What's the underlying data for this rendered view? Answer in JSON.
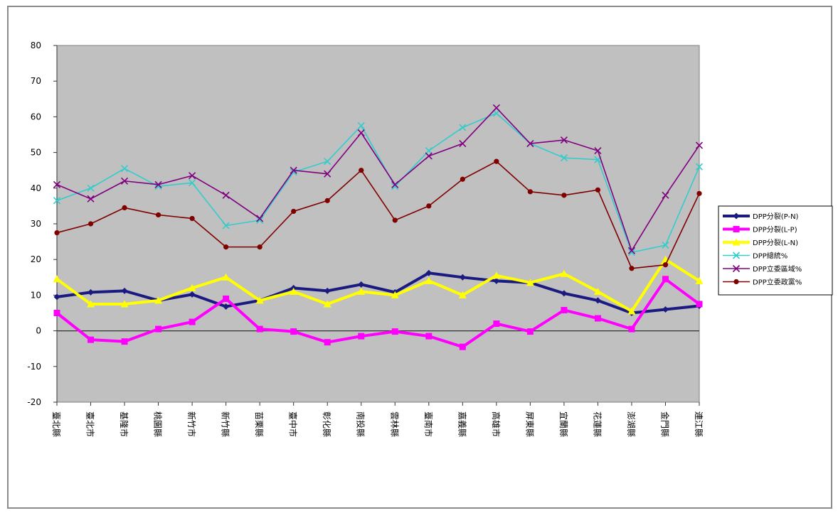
{
  "chart_data": {
    "type": "line",
    "title": "",
    "xlabel": "",
    "ylabel": "",
    "ylim": [
      -20,
      80
    ],
    "yticks": [
      80,
      70,
      60,
      50,
      40,
      30,
      20,
      10,
      0,
      -10,
      -20
    ],
    "grid": "horizontal-off, plot-area-gray",
    "legend_position": "right",
    "categories": [
      "臺北縣",
      "臺北市",
      "基隆市",
      "桃園縣",
      "新竹市",
      "新竹縣",
      "苗栗縣",
      "臺中市",
      "彰化縣",
      "南投縣",
      "雲林縣",
      "臺南市",
      "嘉義縣",
      "高雄市",
      "屏東縣",
      "宜蘭縣",
      "花蓮縣",
      "澎湖縣",
      "金門縣",
      "連江縣"
    ],
    "series": [
      {
        "name": "DPP分裂(P-N)",
        "color": "#1a1a80",
        "marker": "diamond",
        "values": [
          9.5,
          10.8,
          11.2,
          8.5,
          10.2,
          6.8,
          8.5,
          12,
          11.2,
          13,
          10.8,
          16.2,
          15,
          14,
          13.5,
          10.5,
          8.5,
          5,
          6,
          7
        ]
      },
      {
        "name": "DPP分裂(L-P)",
        "color": "#ff00ff",
        "marker": "square",
        "values": [
          5,
          -2.5,
          -3,
          0.5,
          2.5,
          9,
          0.5,
          -0.2,
          -3.2,
          -1.5,
          -0.2,
          -1.5,
          -4.5,
          2,
          -0.2,
          5.8,
          3.5,
          0.5,
          14.5,
          7.5
        ]
      },
      {
        "name": "DPP分裂(L-N)",
        "color": "#ffff00",
        "marker": "triangle",
        "values": [
          14.5,
          7.5,
          7.5,
          8.5,
          12,
          15,
          8.5,
          11,
          7.5,
          11,
          10,
          14,
          10,
          15.5,
          13.5,
          16,
          11,
          5.5,
          20,
          14
        ]
      },
      {
        "name": "DPP總統%",
        "color": "#33cccc",
        "marker": "x",
        "values": [
          36.5,
          40,
          45.5,
          40.5,
          41.5,
          29.5,
          31,
          44.5,
          47.5,
          57.5,
          40.5,
          50.5,
          57,
          61,
          52.5,
          48.5,
          48,
          22,
          24,
          46
        ]
      },
      {
        "name": "DPP立委區域%",
        "color": "#800080",
        "marker": "x",
        "values": [
          41,
          37,
          42,
          41,
          43.5,
          38,
          31.5,
          45,
          44,
          55.5,
          41,
          49,
          52.5,
          62.5,
          52.5,
          53.5,
          50.5,
          22.5,
          38,
          52
        ]
      },
      {
        "name": "DPP立委政黨%",
        "color": "#800000",
        "marker": "dot",
        "values": [
          27.5,
          30,
          34.5,
          32.5,
          31.5,
          23.5,
          23.5,
          33.5,
          36.5,
          45,
          31,
          35,
          42.5,
          47.5,
          39,
          38,
          39.5,
          17.5,
          18.5,
          38.5
        ]
      }
    ]
  }
}
